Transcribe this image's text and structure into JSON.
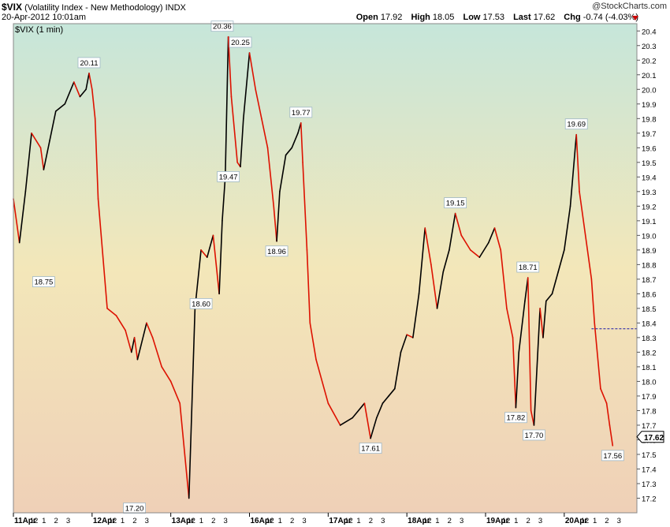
{
  "header": {
    "symbol": "$VIX",
    "name": "(Volatility Index - New Methodology)",
    "exchange": "INDX",
    "date": "20-Apr-2012 10:01am",
    "copyright": "@StockCharts.com",
    "open_label": "Open",
    "open": "17.92",
    "high_label": "High",
    "high": "18.05",
    "low_label": "Low",
    "low": "17.53",
    "last_label": "Last",
    "last": "17.62",
    "chg_label": "Chg",
    "chg": "-0.74 (-4.03%)"
  },
  "colors": {
    "bg_top": "#c6e6da",
    "bg_mid": "#f3e7b9",
    "bg_bottom": "#efd0b7",
    "down_line": "#dd1100",
    "up_line": "#000000",
    "ref_line": "#1a1aa8"
  },
  "chart_data": {
    "type": "line",
    "title": "$VIX (1 min)",
    "ylim": [
      17.1,
      20.45
    ],
    "y_ticks": [
      "17.2",
      "17.3",
      "17.4",
      "17.5",
      "17.6",
      "17.7",
      "17.8",
      "17.9",
      "18.0",
      "18.1",
      "18.2",
      "18.3",
      "18.4",
      "18.5",
      "18.6",
      "18.7",
      "18.8",
      "18.9",
      "19.0",
      "19.1",
      "19.2",
      "19.3",
      "19.4",
      "19.5",
      "19.6",
      "19.7",
      "19.8",
      "19.9",
      "20.0",
      "20.1",
      "20.2",
      "20.3",
      "20.4"
    ],
    "last_value": "17.62",
    "reference_level": 18.36,
    "days": [
      "11Apr",
      "12Apr",
      "13Apr",
      "16Apr",
      "17Apr",
      "18Apr",
      "19Apr",
      "20Apr"
    ],
    "intraday_ticks": [
      "11",
      "12",
      "1",
      "2",
      "3"
    ],
    "annotations": [
      {
        "text": "18.75",
        "x": 0.5,
        "y": 18.75,
        "pos": "below"
      },
      {
        "text": "20.11",
        "x": 1.25,
        "y": 20.11,
        "pos": "above"
      },
      {
        "text": "17.20",
        "x": 2.0,
        "y": 17.2,
        "pos": "below"
      },
      {
        "text": "20.36",
        "x": 3.45,
        "y": 20.36,
        "pos": "above"
      },
      {
        "text": "20.25",
        "x": 3.75,
        "y": 20.25,
        "pos": "above"
      },
      {
        "text": "19.47",
        "x": 3.55,
        "y": 19.47,
        "pos": "below"
      },
      {
        "text": "18.60",
        "x": 3.1,
        "y": 18.6,
        "pos": "below"
      },
      {
        "text": "18.96",
        "x": 4.35,
        "y": 18.96,
        "pos": "below"
      },
      {
        "text": "19.77",
        "x": 4.75,
        "y": 19.77,
        "pos": "above"
      },
      {
        "text": "17.61",
        "x": 5.9,
        "y": 17.61,
        "pos": "below"
      },
      {
        "text": "19.15",
        "x": 7.3,
        "y": 19.15,
        "pos": "above"
      },
      {
        "text": "18.71",
        "x": 8.5,
        "y": 18.71,
        "pos": "above"
      },
      {
        "text": "17.82",
        "x": 8.3,
        "y": 17.82,
        "pos": "below"
      },
      {
        "text": "17.70",
        "x": 8.6,
        "y": 17.7,
        "pos": "below"
      },
      {
        "text": "19.69",
        "x": 9.3,
        "y": 19.69,
        "pos": "above"
      },
      {
        "text": "17.56",
        "x": 9.9,
        "y": 17.56,
        "pos": "below"
      }
    ],
    "x": [
      0,
      0.1,
      0.2,
      0.3,
      0.45,
      0.5,
      0.6,
      0.7,
      0.85,
      1.0,
      1.1,
      1.2,
      1.25,
      1.3,
      1.35,
      1.4,
      1.55,
      1.7,
      1.85,
      1.95,
      2.0,
      2.05,
      2.2,
      2.3,
      2.45,
      2.6,
      2.75,
      2.9,
      3.0,
      3.1,
      3.2,
      3.3,
      3.4,
      3.45,
      3.5,
      3.55,
      3.6,
      3.7,
      3.75,
      3.8,
      3.9,
      4.0,
      4.1,
      4.2,
      4.3,
      4.35,
      4.4,
      4.5,
      4.6,
      4.7,
      4.75,
      4.78,
      4.85,
      4.9,
      5.0,
      5.2,
      5.4,
      5.6,
      5.8,
      5.9,
      6.0,
      6.1,
      6.2,
      6.3,
      6.4,
      6.5,
      6.6,
      6.7,
      6.8,
      6.9,
      7.0,
      7.1,
      7.2,
      7.3,
      7.4,
      7.55,
      7.7,
      7.85,
      7.95,
      8.05,
      8.15,
      8.25,
      8.3,
      8.35,
      8.45,
      8.5,
      8.55,
      8.6,
      8.65,
      8.7,
      8.75,
      8.8,
      8.9,
      9.0,
      9.1,
      9.2,
      9.3,
      9.35,
      9.45,
      9.55,
      9.6,
      9.7,
      9.8,
      9.85,
      9.9
    ],
    "y": [
      19.25,
      18.95,
      19.3,
      19.7,
      19.6,
      19.45,
      19.65,
      19.85,
      19.9,
      20.05,
      19.95,
      20.0,
      20.11,
      20.0,
      19.8,
      19.25,
      18.5,
      18.45,
      18.35,
      18.2,
      18.3,
      18.15,
      18.4,
      18.3,
      18.1,
      18.0,
      17.85,
      17.2,
      18.5,
      18.9,
      18.85,
      19.0,
      18.6,
      19.1,
      19.4,
      20.36,
      19.95,
      19.5,
      19.47,
      19.8,
      20.25,
      20.0,
      19.8,
      19.6,
      19.2,
      18.96,
      19.3,
      19.55,
      19.6,
      19.7,
      19.77,
      19.5,
      18.9,
      18.4,
      18.15,
      17.85,
      17.7,
      17.75,
      17.85,
      17.61,
      17.75,
      17.85,
      17.9,
      17.95,
      18.2,
      18.32,
      18.3,
      18.6,
      19.05,
      18.8,
      18.5,
      18.75,
      18.9,
      19.15,
      19.0,
      18.9,
      18.85,
      18.95,
      19.05,
      18.9,
      18.5,
      18.3,
      17.82,
      18.2,
      18.55,
      18.71,
      17.8,
      17.7,
      18.1,
      18.5,
      18.3,
      18.55,
      18.6,
      18.75,
      18.9,
      19.2,
      19.69,
      19.3,
      19.0,
      18.7,
      18.4,
      17.95,
      17.85,
      17.7,
      17.56
    ]
  }
}
